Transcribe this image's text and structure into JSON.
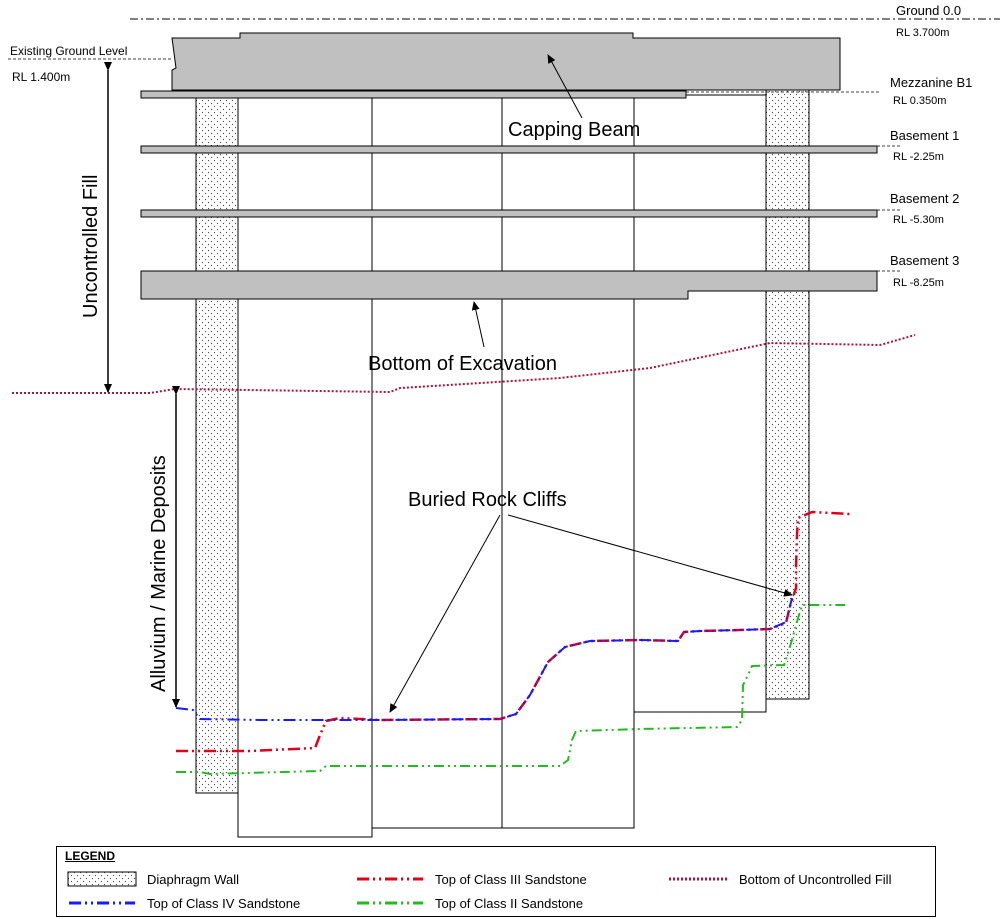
{
  "levels": {
    "ground": {
      "name": "Ground 0.0",
      "rl": "RL 3.700m"
    },
    "existing_ground": {
      "name": "Existing Ground Level",
      "rl": "RL 1.400m"
    },
    "mezzanine": {
      "name": "Mezzanine B1",
      "rl": "RL 0.350m"
    },
    "basement1": {
      "name": "Basement 1",
      "rl": "RL -2.25m"
    },
    "basement2": {
      "name": "Basement 2",
      "rl": "RL -5.30m"
    },
    "basement3": {
      "name": "Basement 3",
      "rl": "RL -8.25m"
    }
  },
  "annotations": {
    "capping_beam": "Capping Beam",
    "bottom_excavation": "Bottom of Excavation",
    "buried_rock_cliffs": "Buried Rock Cliffs",
    "uncontrolled_fill": "Uncontrolled Fill",
    "alluvium": "Alluvium / Marine Deposits"
  },
  "legend": {
    "title": "LEGEND",
    "diaphragm_wall": "Diaphragm  Wall",
    "class_iv": "Top of Class IV Sandstone",
    "class_iii": "Top of Class III Sandstone",
    "class_ii": "Top of Class II Sandstone",
    "uncontrolled_fill": "Bottom of Uncontrolled Fill"
  },
  "colors": {
    "slab": "#c0c0c0",
    "class_iv": "#1a1aff",
    "class_iii": "#e0001a",
    "class_ii": "#22bb22",
    "fill_line": "#b0103a"
  }
}
